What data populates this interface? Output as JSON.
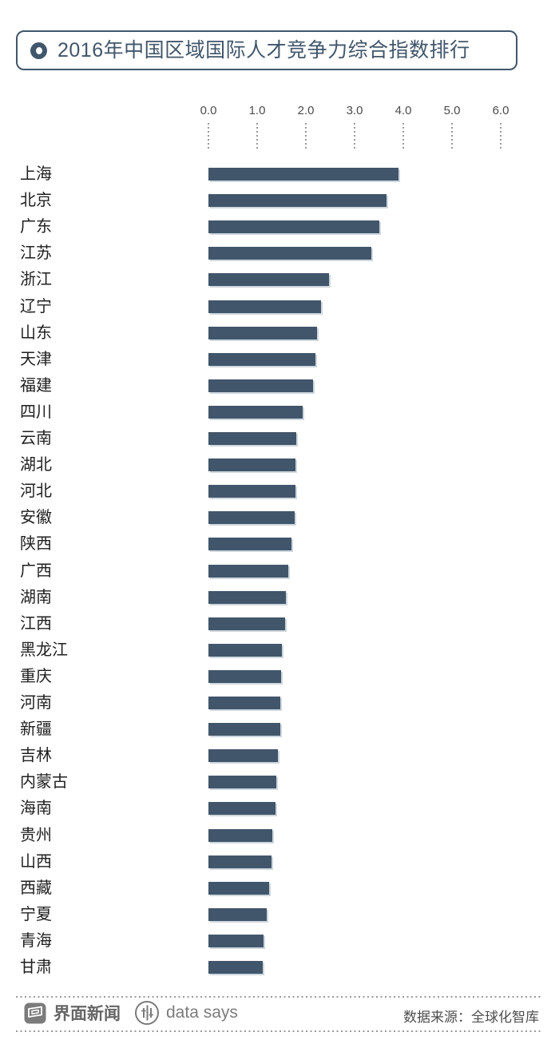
{
  "title": {
    "text": "2016年中国区域国际人才竞争力综合指数排行",
    "icon": "donut-circle-icon"
  },
  "colors": {
    "bar": "#41566B",
    "accent": "#41566B",
    "axis_text": "#4b4b4b",
    "label_text": "#1f1f1f",
    "footer_gray": "#7c7c7c",
    "source_text": "#4d4d4d",
    "dotted_line": "#9a9a9a"
  },
  "chart_data": {
    "type": "bar",
    "orientation": "horizontal",
    "title": "2016年中国区域国际人才竞争力综合指数排行",
    "categories": [
      "上海",
      "北京",
      "广东",
      "江苏",
      "浙江",
      "辽宁",
      "山东",
      "天津",
      "福建",
      "四川",
      "云南",
      "湖北",
      "河北",
      "安徽",
      "陕西",
      "广西",
      "湖南",
      "江西",
      "黑龙江",
      "重庆",
      "河南",
      "新疆",
      "吉林",
      "内蒙古",
      "海南",
      "贵州",
      "山西",
      "西藏",
      "宁夏",
      "青海",
      "甘肃"
    ],
    "values": [
      3.9,
      3.65,
      3.5,
      3.35,
      2.48,
      2.31,
      2.23,
      2.2,
      2.15,
      1.93,
      1.8,
      1.78,
      1.78,
      1.77,
      1.7,
      1.64,
      1.59,
      1.58,
      1.5,
      1.49,
      1.48,
      1.47,
      1.43,
      1.39,
      1.38,
      1.31,
      1.29,
      1.25,
      1.19,
      1.13,
      1.12
    ],
    "xlim": [
      0,
      6.0
    ],
    "xticks": [
      "0.0",
      "1.0",
      "2.0",
      "3.0",
      "4.0",
      "5.0",
      "6.0"
    ],
    "xlabel": "",
    "ylabel": "",
    "grid": "dotted tick stubs below axis labels only",
    "legend": "none",
    "bar_color": "#41566B"
  },
  "footer": {
    "brand": "界面新闻",
    "brand_icon": "jiemian-logo",
    "product": "data says",
    "product_icon": "data-says-logo",
    "source": "数据来源：全球化智库"
  }
}
